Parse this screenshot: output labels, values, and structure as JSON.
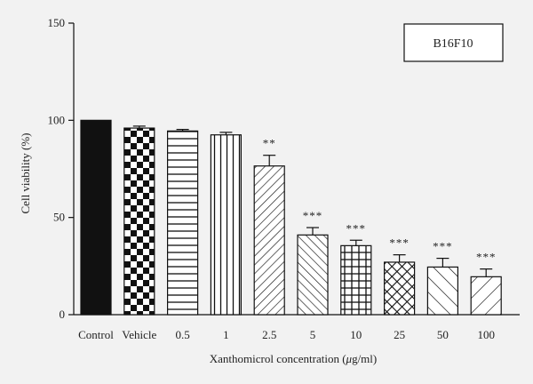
{
  "chart_data": {
    "type": "bar",
    "categories": [
      "Control",
      "Vehicle",
      "0.5",
      "1",
      "2.5",
      "5",
      "10",
      "25",
      "50",
      "100"
    ],
    "values": [
      100,
      96,
      94.5,
      92.5,
      76.5,
      41,
      35.5,
      27,
      24.5,
      19.5
    ],
    "errors": [
      0,
      1,
      0.8,
      1.3,
      5.5,
      3.8,
      2.8,
      3.8,
      4.5,
      4
    ],
    "significance": [
      "",
      "",
      "",
      "",
      "**",
      "***",
      "***",
      "***",
      "***",
      "***"
    ],
    "patterns": [
      "solid",
      "checker",
      "hlines",
      "vlines",
      "diag-up",
      "diag-down",
      "grid",
      "crosshatch",
      "diag-down-wide",
      "diag-up-wide"
    ],
    "ylabel": "Cell viability (%)",
    "xlabel": "Xanthomicrol concentration (",
    "xlabel_unit_italic": "μ",
    "xlabel_suffix": "g/ml)",
    "ylim": [
      0,
      150
    ],
    "yticks": [
      0,
      50,
      100,
      150
    ],
    "legend": "B16F10",
    "legend_position": "top-right",
    "grid": false,
    "colors": {
      "bar_stroke": "#111111",
      "bar_fill_solid": "#111111",
      "background": "#f2f2f2"
    }
  }
}
